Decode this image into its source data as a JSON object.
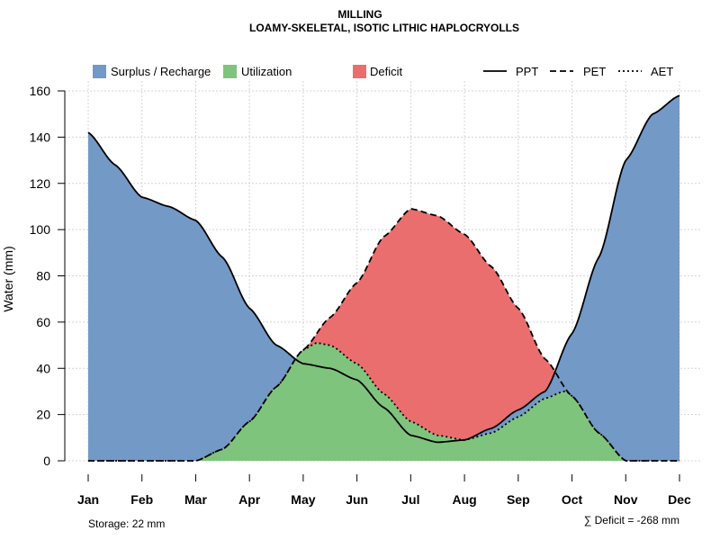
{
  "chart_data": {
    "type": "area",
    "title": "MILLING",
    "subtitle": "LOAMY-SKELETAL, ISOTIC LITHIC HAPLOCRYOLLS",
    "ylabel": "Water (mm)",
    "xlabel": "",
    "ylim": [
      0,
      160
    ],
    "yticks": [
      0,
      20,
      40,
      60,
      80,
      100,
      120,
      140,
      160
    ],
    "grid": true,
    "legend_position": "top",
    "categories": [
      "Jan",
      "Feb",
      "Mar",
      "Apr",
      "May",
      "Jun",
      "Jul",
      "Aug",
      "Sep",
      "Oct",
      "Nov",
      "Dec"
    ],
    "series": [
      {
        "name": "PPT",
        "style": "solid",
        "x": [
          1,
          1.5,
          2,
          2.5,
          3,
          3.5,
          4,
          4.5,
          5,
          5.5,
          6,
          6.5,
          7,
          7.5,
          8,
          8.5,
          9,
          9.5,
          10,
          10.5,
          11,
          11.5,
          12
        ],
        "values": [
          142,
          128,
          114,
          110,
          104,
          88,
          66,
          50,
          42,
          40,
          35,
          23,
          11,
          8,
          9,
          14,
          22,
          30,
          55,
          88,
          130,
          150,
          158
        ]
      },
      {
        "name": "PET",
        "style": "dashed",
        "x": [
          1,
          1.5,
          2,
          2.5,
          3,
          3.5,
          4,
          4.5,
          5,
          5.5,
          6,
          6.5,
          7,
          7.5,
          8,
          8.5,
          9,
          9.5,
          10,
          10.5,
          11,
          11.5,
          12
        ],
        "values": [
          0,
          0,
          0,
          0,
          0,
          5,
          17,
          32,
          48,
          62,
          77,
          97,
          109,
          106,
          98,
          84,
          66,
          44,
          28,
          12,
          0,
          0,
          0
        ]
      },
      {
        "name": "AET",
        "style": "dotted",
        "x": [
          1,
          1.5,
          2,
          2.5,
          3,
          3.5,
          4,
          4.5,
          5,
          5.25,
          5.5,
          6,
          6.5,
          7,
          7.5,
          8,
          8.5,
          9,
          9.5,
          9.85,
          10,
          10.5,
          11,
          11.5,
          12
        ],
        "values": [
          0,
          0,
          0,
          0,
          0,
          5,
          17,
          32,
          48,
          51,
          50,
          42,
          29,
          17,
          11,
          9,
          12,
          19,
          27,
          30,
          29,
          12,
          0,
          0,
          0
        ]
      }
    ],
    "areas": [
      "Surplus / Recharge",
      "Utilization",
      "Deficit"
    ],
    "annotations": {
      "storage": "Storage: 22 mm",
      "deficit": "∑ Deficit = -268 mm"
    }
  },
  "legend": {
    "surplus": "Surplus / Recharge",
    "utilization": "Utilization",
    "deficit": "Deficit",
    "ppt": "PPT",
    "pet": "PET",
    "aet": "AET"
  },
  "colors": {
    "surplus": "#7399C6",
    "utilization": "#7FC47C",
    "deficit": "#EB6E6E",
    "line": "#000000",
    "grid": "#d4d4d4"
  }
}
